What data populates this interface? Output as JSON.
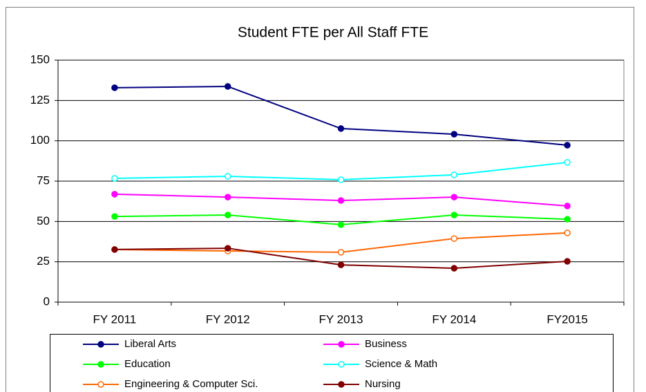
{
  "chart_data": {
    "type": "line",
    "title": "Student FTE per All Staff FTE",
    "categories": [
      "FY 2011",
      "FY 2012",
      "FY 2013",
      "FY 2014",
      "FY2015"
    ],
    "ylim": [
      0,
      150
    ],
    "yticks": [
      0,
      25,
      50,
      75,
      100,
      125,
      150
    ],
    "grid": true,
    "series": [
      {
        "name": "Liberal Arts",
        "color": "#000080",
        "marker": "filled",
        "values": [
          132.9,
          133.7,
          107.6,
          104.1,
          97.3
        ]
      },
      {
        "name": "Business",
        "color": "#ff00ff",
        "marker": "filled",
        "values": [
          66.9,
          65.1,
          63.0,
          65.1,
          59.6
        ]
      },
      {
        "name": "Education",
        "color": "#00ff00",
        "marker": "filled",
        "values": [
          53.1,
          54.0,
          48.0,
          54.0,
          51.4
        ]
      },
      {
        "name": "Science & Math",
        "color": "#00ffff",
        "marker": "open",
        "values": [
          76.7,
          78.0,
          75.9,
          78.9,
          86.6
        ]
      },
      {
        "name": "Engineering & Computer Sci.",
        "color": "#ff6600",
        "marker": "open",
        "values": [
          32.6,
          31.7,
          30.9,
          39.4,
          42.9
        ]
      },
      {
        "name": "Nursing",
        "color": "#800000",
        "marker": "filled",
        "values": [
          32.6,
          33.4,
          23.1,
          21.0,
          25.3
        ]
      }
    ]
  }
}
